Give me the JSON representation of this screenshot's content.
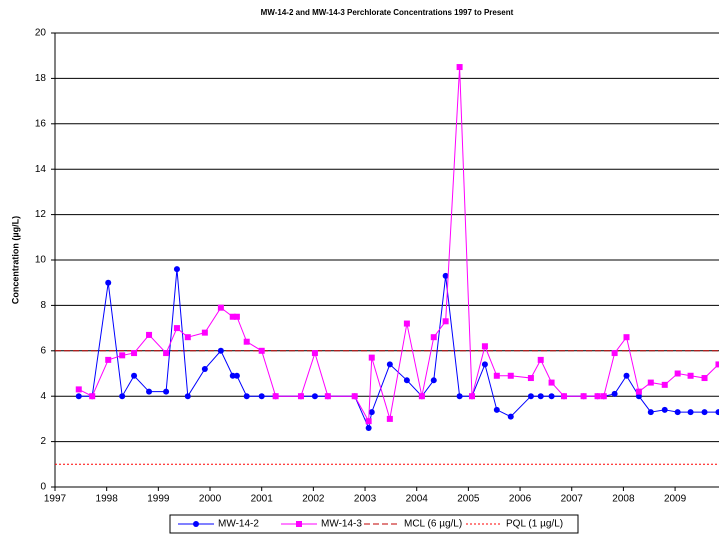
{
  "chart_data": {
    "type": "line",
    "title": "MW-14-2 and MW-14-3 Perchlorate Concentrations 1997 to Present",
    "y_label": "Concentration (µg/L)",
    "x": [
      1997.46,
      1997.72,
      1998.03,
      1998.3,
      1998.53,
      1998.82,
      1999.15,
      1999.36,
      1999.57,
      1999.9,
      2000.21,
      2000.44,
      2000.52,
      2000.71,
      2001.0,
      2001.27,
      2001.76,
      2002.03,
      2002.28,
      2002.8,
      2003.07,
      2003.13,
      2003.48,
      2003.81,
      2004.1,
      2004.33,
      2004.56,
      2004.83,
      2005.07,
      2005.32,
      2005.55,
      2005.82,
      2006.21,
      2006.4,
      2006.61,
      2006.85,
      2007.23,
      2007.5,
      2007.62,
      2007.83,
      2008.06,
      2008.3,
      2008.53,
      2008.8,
      2009.05,
      2009.3,
      2009.57,
      2009.84
    ],
    "series": [
      {
        "name": "MW-14-2",
        "color": "#0000ff",
        "marker": "circle",
        "values": [
          4.0,
          4.0,
          9.0,
          4.0,
          4.9,
          4.2,
          4.2,
          9.6,
          4.0,
          5.2,
          6.0,
          4.9,
          4.9,
          4.0,
          4.0,
          4.0,
          4.0,
          4.0,
          4.0,
          4.0,
          2.6,
          3.3,
          5.4,
          4.7,
          4.0,
          4.7,
          9.3,
          4.0,
          4.0,
          5.4,
          3.4,
          3.1,
          4.0,
          4.0,
          4.0,
          4.0,
          4.0,
          4.0,
          4.0,
          4.1,
          4.9,
          4.0,
          3.3,
          3.4,
          3.3,
          3.3,
          3.3,
          3.3
        ]
      },
      {
        "name": "MW-14-3",
        "color": "#ff00ff",
        "marker": "square",
        "values": [
          4.3,
          4.0,
          5.6,
          5.8,
          5.9,
          6.7,
          5.9,
          7.0,
          6.6,
          6.8,
          7.9,
          7.5,
          7.5,
          6.4,
          6.0,
          4.0,
          4.0,
          5.9,
          4.0,
          4.0,
          2.9,
          5.7,
          3.0,
          7.2,
          4.0,
          6.6,
          7.3,
          18.5,
          4.0,
          6.2,
          4.9,
          4.9,
          4.8,
          5.6,
          4.6,
          4.0,
          4.0,
          4.0,
          4.0,
          5.9,
          6.6,
          4.2,
          4.6,
          4.5,
          5.0,
          4.9,
          4.8,
          5.4
        ]
      }
    ],
    "reference_lines": [
      {
        "name": "MCL (6 µg/L)",
        "value": 6,
        "color": "#c00000",
        "dash": "dashed"
      },
      {
        "name": "PQL (1 µg/L)",
        "value": 1,
        "color": "#ff0000",
        "dash": "dotted"
      }
    ],
    "xlim": [
      1997,
      2009.85
    ],
    "xticks": [
      1997,
      1998,
      1999,
      2000,
      2001,
      2002,
      2003,
      2004,
      2005,
      2006,
      2007,
      2008,
      2009
    ],
    "ylim": [
      0,
      20
    ],
    "yticks": [
      0,
      2,
      4,
      6,
      8,
      10,
      12,
      14,
      16,
      18,
      20
    ],
    "grid": true,
    "legend": "bottom"
  }
}
